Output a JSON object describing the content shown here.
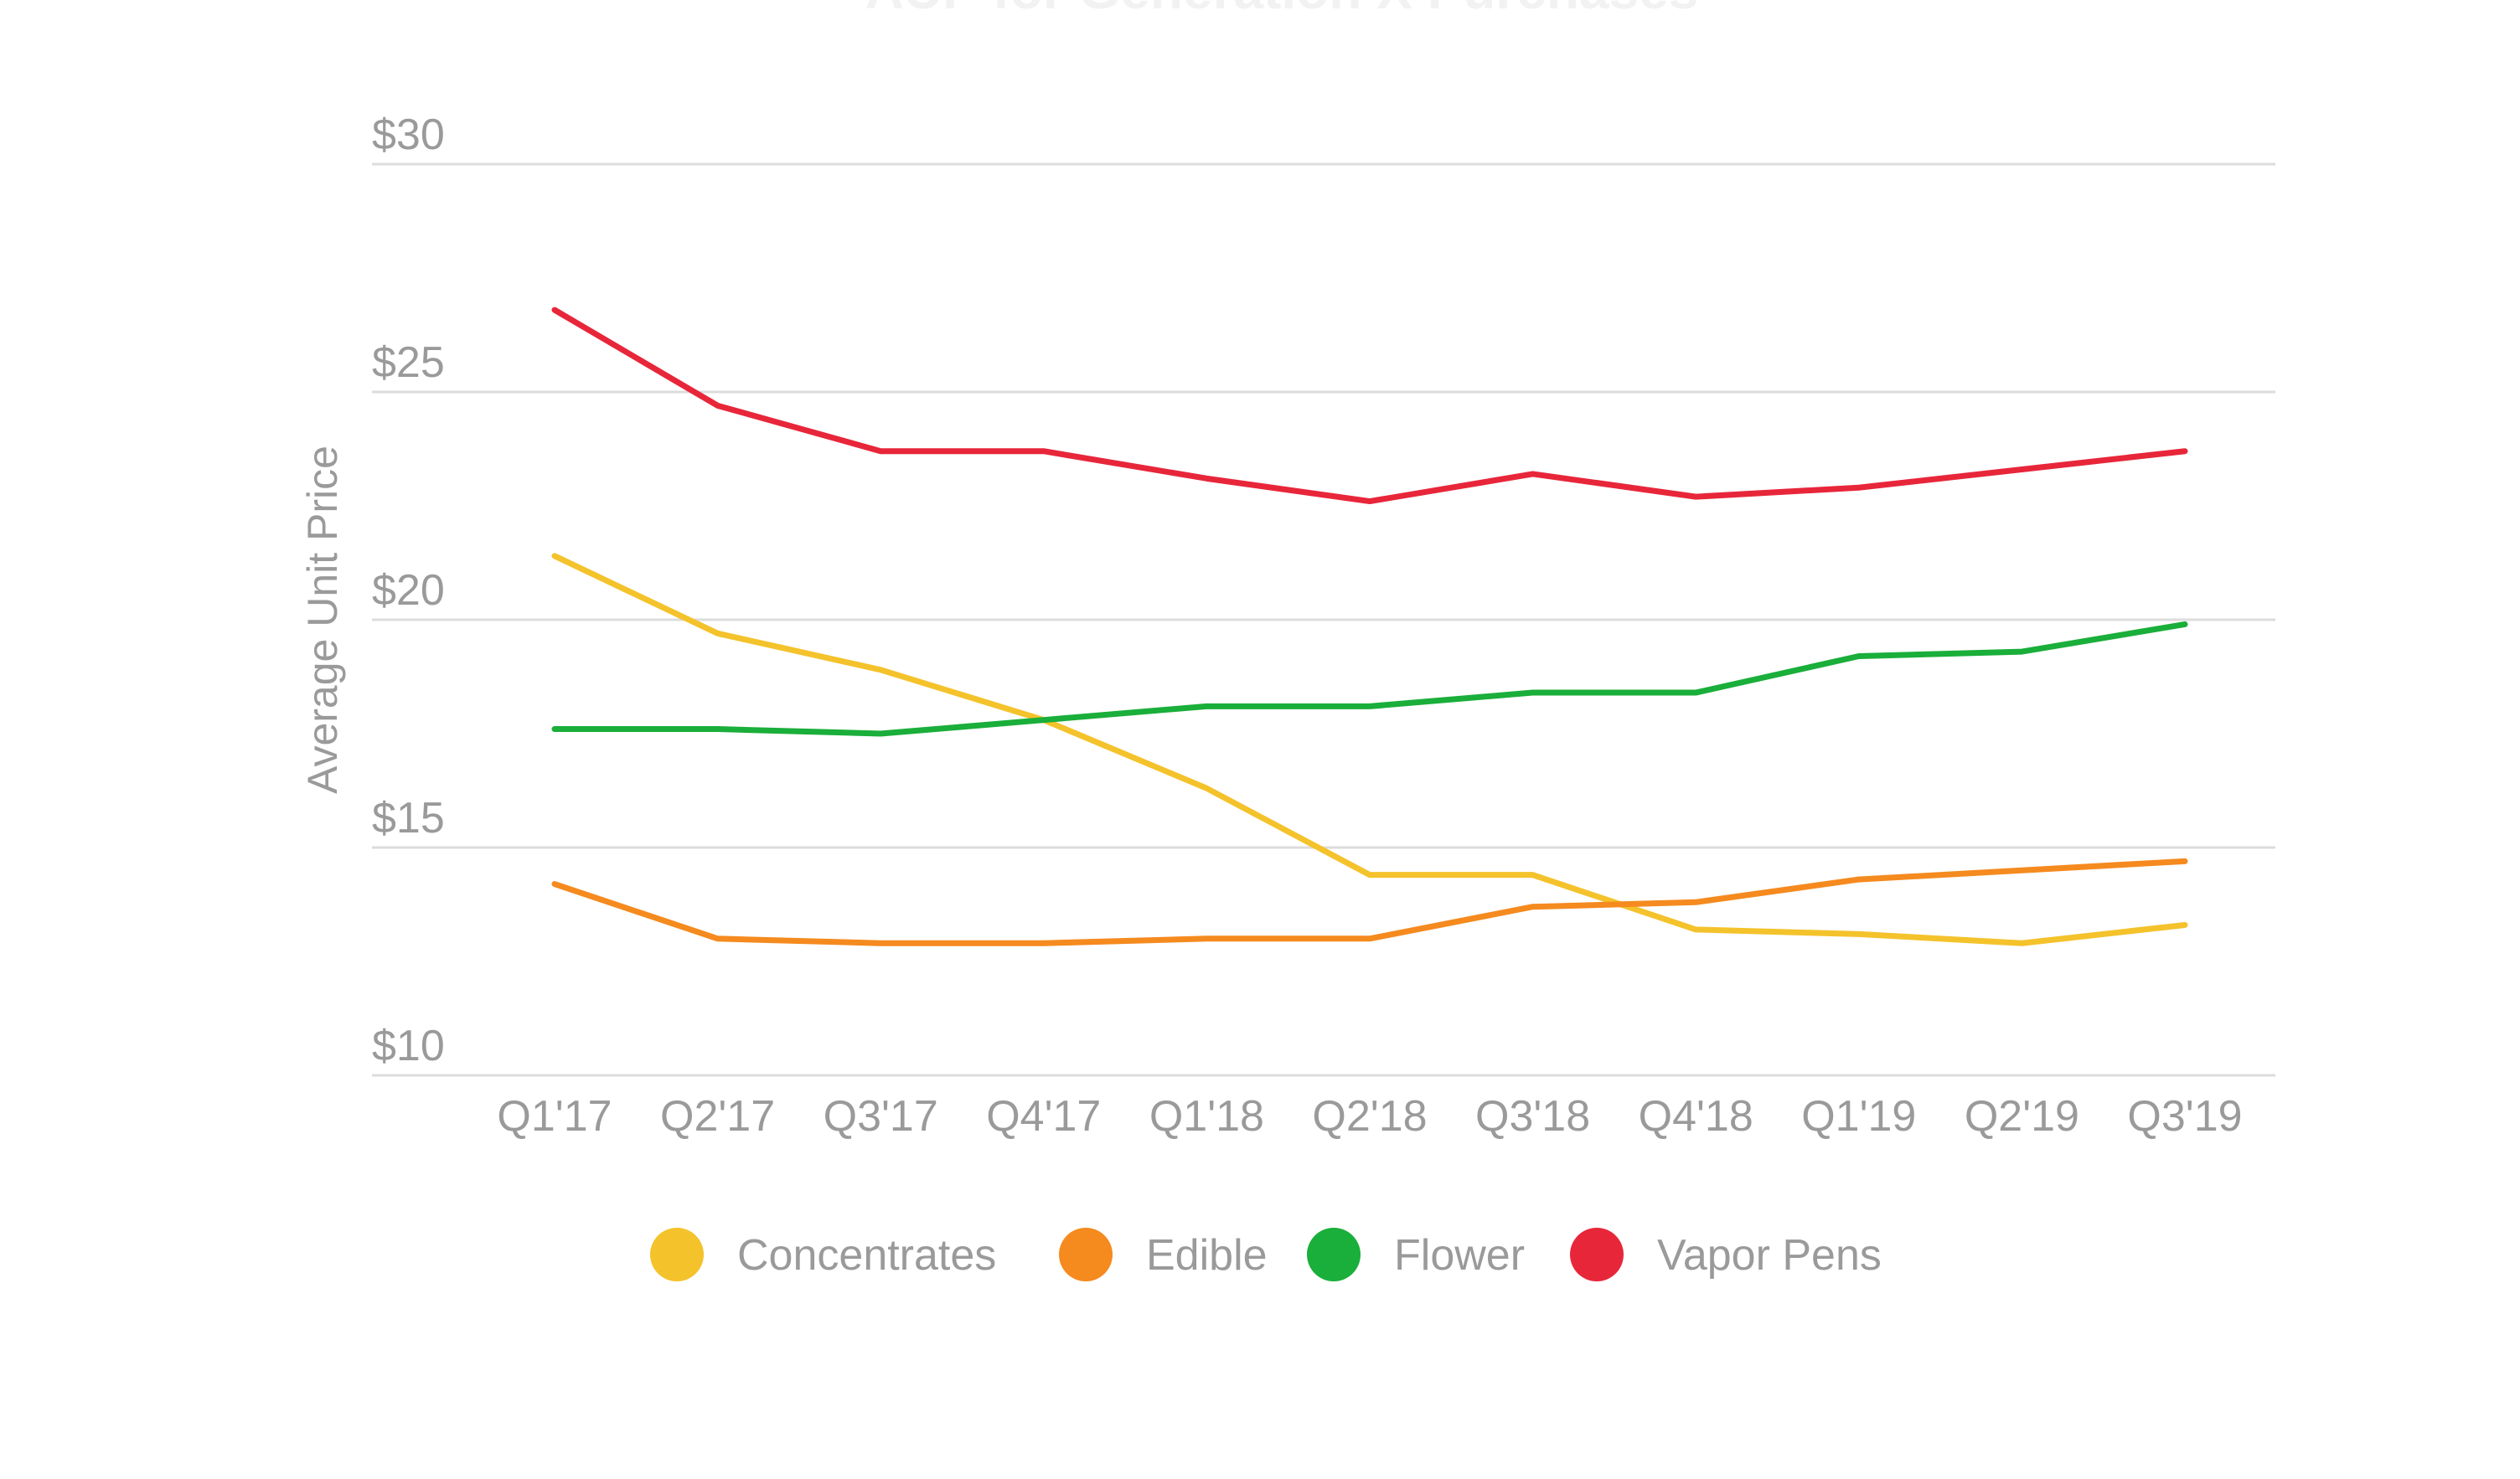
{
  "chart_data": {
    "type": "line",
    "title": "AUP for Generation X Purchases",
    "xlabel": "",
    "ylabel": "Average Unit Price",
    "ylim": [
      10,
      30
    ],
    "yticks": [
      "$30",
      "$25",
      "$20",
      "$15",
      "$10"
    ],
    "ytick_values": [
      30,
      25,
      20,
      15,
      10
    ],
    "categories": [
      "Q1'17",
      "Q2'17",
      "Q3'17",
      "Q4'17",
      "Q1'18",
      "Q2'18",
      "Q3'18",
      "Q4'18",
      "Q1'19",
      "Q2'19",
      "Q3'19"
    ],
    "grid": true,
    "legend_position": "bottom",
    "series": [
      {
        "name": "Concentrates",
        "color": "#f4c22b",
        "values": [
          21.4,
          19.7,
          18.9,
          17.8,
          16.3,
          14.4,
          14.4,
          13.2,
          13.1,
          12.9,
          13.3
        ]
      },
      {
        "name": "Edible",
        "color": "#f58a1f",
        "values": [
          14.2,
          13.0,
          12.9,
          12.9,
          13.0,
          13.0,
          13.7,
          13.8,
          14.3,
          14.5,
          14.7
        ]
      },
      {
        "name": "Flower",
        "color": "#1aae3a",
        "values": [
          17.6,
          17.6,
          17.5,
          17.8,
          18.1,
          18.1,
          18.4,
          18.4,
          19.2,
          19.3,
          19.9
        ]
      },
      {
        "name": "Vapor Pens",
        "color": "#e8263a",
        "values": [
          26.8,
          24.7,
          23.7,
          23.7,
          23.1,
          22.6,
          23.2,
          22.7,
          22.9,
          23.3,
          23.7
        ]
      }
    ]
  }
}
